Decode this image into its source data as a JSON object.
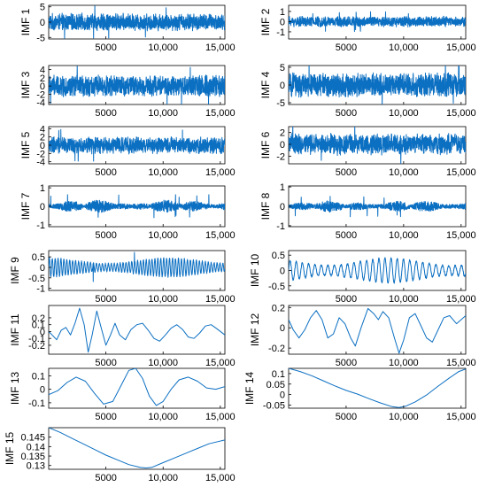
{
  "figure": {
    "line_color": "#0b6fc2"
  },
  "chart_data": [
    {
      "type": "line",
      "ylabel": "IMF 1",
      "xlim": [
        0,
        15400
      ],
      "xticks": [
        5000,
        10000,
        15000
      ],
      "xtick_labels": [
        "5000",
        "10,000",
        "15,000"
      ],
      "ylim": [
        -5.5,
        5.5
      ],
      "yticks": [
        -5,
        0,
        5
      ],
      "ytick_labels": [
        "-5",
        "0",
        "5"
      ],
      "signal": {
        "kind": "noise",
        "amp": 3.0,
        "spikes": 6
      }
    },
    {
      "type": "line",
      "ylabel": "IMF 2",
      "xlim": [
        0,
        15400
      ],
      "xticks": [
        5000,
        10000,
        15000
      ],
      "xtick_labels": [
        "5000",
        "10,000",
        "15,000"
      ],
      "ylim": [
        -1.7,
        1.6
      ],
      "yticks": [
        -1,
        0,
        1
      ],
      "ytick_labels": [
        "-1",
        "0",
        "1"
      ],
      "signal": {
        "kind": "noise",
        "amp": 0.55,
        "spikes": 10
      }
    },
    {
      "type": "line",
      "ylabel": "IMF 3",
      "xlim": [
        0,
        15400
      ],
      "xticks": [
        5000,
        10000,
        15000
      ],
      "xtick_labels": [
        "5000",
        "10,000",
        "15,000"
      ],
      "ylim": [
        -4.5,
        5.0
      ],
      "yticks": [
        -4,
        -2,
        0,
        2,
        4
      ],
      "ytick_labels": [
        "-4",
        "-2",
        "0",
        "2",
        "4"
      ],
      "signal": {
        "kind": "noise",
        "amp": 2.8,
        "spikes": 6
      }
    },
    {
      "type": "line",
      "ylabel": "IMF 4",
      "xlim": [
        0,
        15400
      ],
      "xticks": [
        5000,
        10000,
        15000
      ],
      "xtick_labels": [
        "5000",
        "10,000",
        "15,000"
      ],
      "ylim": [
        -5.5,
        5.5
      ],
      "yticks": [
        -5,
        0,
        5
      ],
      "ytick_labels": [
        "-5",
        "0",
        "5"
      ],
      "signal": {
        "kind": "noise",
        "amp": 3.6,
        "spikes": 6
      }
    },
    {
      "type": "line",
      "ylabel": "IMF 5",
      "xlim": [
        0,
        15400
      ],
      "xticks": [
        5000,
        10000,
        15000
      ],
      "xtick_labels": [
        "5000",
        "10,000",
        "15,000"
      ],
      "ylim": [
        -4.5,
        4.5
      ],
      "yticks": [
        -4,
        -2,
        0,
        2,
        4
      ],
      "ytick_labels": [
        "-4",
        "-2",
        "0",
        "2",
        "4"
      ],
      "signal": {
        "kind": "noise",
        "amp": 2.2,
        "spikes": 6
      }
    },
    {
      "type": "line",
      "ylabel": "IMF 6",
      "xlim": [
        0,
        15400
      ],
      "xticks": [
        5000,
        10000,
        15000
      ],
      "xtick_labels": [
        "5000",
        "10,000",
        "15,000"
      ],
      "ylim": [
        -3.3,
        3.0
      ],
      "yticks": [
        -2,
        0,
        2
      ],
      "ytick_labels": [
        "-2",
        "0",
        "2"
      ],
      "signal": {
        "kind": "noise",
        "amp": 1.9,
        "spikes": 4
      }
    },
    {
      "type": "line",
      "ylabel": "IMF 7",
      "xlim": [
        0,
        15400
      ],
      "xticks": [
        5000,
        10000,
        15000
      ],
      "xtick_labels": [
        "5000",
        "10,000",
        "15,000"
      ],
      "ylim": [
        -1.1,
        1.1
      ],
      "yticks": [
        -1,
        0,
        1
      ],
      "ytick_labels": [
        "-1",
        "0",
        "1"
      ],
      "signal": {
        "kind": "bursty",
        "amp": 0.35,
        "spikes": 12
      }
    },
    {
      "type": "line",
      "ylabel": "IMF 8",
      "xlim": [
        0,
        15400
      ],
      "xticks": [
        5000,
        10000,
        15000
      ],
      "xtick_labels": [
        "5000",
        "10,000",
        "15,000"
      ],
      "ylim": [
        -1.05,
        1.05
      ],
      "yticks": [
        -1,
        0,
        1
      ],
      "ytick_labels": [
        "-1",
        "0",
        "1"
      ],
      "signal": {
        "kind": "bursty",
        "amp": 0.3,
        "spikes": 10
      }
    },
    {
      "type": "line",
      "ylabel": "IMF 9",
      "xlim": [
        0,
        15400
      ],
      "xticks": [
        5000,
        10000,
        15000
      ],
      "xtick_labels": [
        "5000",
        "10,000",
        "15,000"
      ],
      "ylim": [
        -1.1,
        0.8
      ],
      "yticks": [
        -1,
        -0.5,
        0,
        0.5
      ],
      "ytick_labels": [
        "-1",
        "-0.5",
        "0",
        "0.5"
      ],
      "signal": {
        "kind": "osc",
        "amp": 0.45,
        "cycles": 60,
        "spikes": 2
      }
    },
    {
      "type": "line",
      "ylabel": "IMF 10",
      "xlim": [
        0,
        15400
      ],
      "xticks": [
        5000,
        10000,
        15000
      ],
      "xtick_labels": [
        "5000",
        "10,000",
        "15,000"
      ],
      "ylim": [
        -0.65,
        0.65
      ],
      "yticks": [
        -0.5,
        0,
        0.5
      ],
      "ytick_labels": [
        "-0.5",
        "0",
        "0.5"
      ],
      "signal": {
        "kind": "osc",
        "amp": 0.4,
        "cycles": 28,
        "spikes": 0
      }
    },
    {
      "type": "line",
      "ylabel": "IMF 11",
      "xlim": [
        0,
        15400
      ],
      "xticks": [
        5000,
        10000,
        15000
      ],
      "xtick_labels": [
        "5000",
        "10,000",
        "15,000"
      ],
      "ylim": [
        -0.33,
        0.38
      ],
      "yticks": [
        -0.2,
        -0.1,
        0,
        0.1,
        0.2
      ],
      "ytick_labels": [
        "-0.2",
        "-0.1",
        "0",
        "0.1",
        "0.2"
      ],
      "signal": {
        "kind": "custom",
        "points": [
          [
            0,
            0
          ],
          [
            300,
            -0.05
          ],
          [
            700,
            -0.12
          ],
          [
            1100,
            0.02
          ],
          [
            1500,
            0.06
          ],
          [
            1900,
            -0.05
          ],
          [
            2300,
            0.12
          ],
          [
            2700,
            0.34
          ],
          [
            3100,
            0.1
          ],
          [
            3450,
            -0.3
          ],
          [
            3800,
            -0.05
          ],
          [
            4200,
            0.3
          ],
          [
            4600,
            0.05
          ],
          [
            5000,
            -0.2
          ],
          [
            5400,
            -0.05
          ],
          [
            5800,
            0.12
          ],
          [
            6200,
            -0.05
          ],
          [
            6700,
            -0.12
          ],
          [
            7200,
            0.03
          ],
          [
            7700,
            0.1
          ],
          [
            8200,
            0.12
          ],
          [
            8700,
            0.02
          ],
          [
            9200,
            -0.1
          ],
          [
            9700,
            -0.14
          ],
          [
            10200,
            -0.05
          ],
          [
            10700,
            0.05
          ],
          [
            11200,
            0.1
          ],
          [
            11700,
            0.03
          ],
          [
            12200,
            -0.08
          ],
          [
            12700,
            -0.1
          ],
          [
            13200,
            -0.02
          ],
          [
            13700,
            0.08
          ],
          [
            14200,
            0.1
          ],
          [
            14700,
            0.04
          ],
          [
            15400,
            -0.05
          ]
        ]
      }
    },
    {
      "type": "line",
      "ylabel": "IMF 12",
      "xlim": [
        0,
        15400
      ],
      "xticks": [
        5000,
        10000,
        15000
      ],
      "xtick_labels": [
        "5000",
        "10,000",
        "15,000"
      ],
      "ylim": [
        -0.26,
        0.22
      ],
      "yticks": [
        -0.2,
        0,
        0.2
      ],
      "ytick_labels": [
        "-0.2",
        "0",
        "0.2"
      ],
      "signal": {
        "kind": "custom",
        "points": [
          [
            0,
            0.08
          ],
          [
            400,
            -0.02
          ],
          [
            900,
            -0.1
          ],
          [
            1400,
            -0.02
          ],
          [
            1900,
            0.1
          ],
          [
            2400,
            0.17
          ],
          [
            2900,
            0.08
          ],
          [
            3400,
            -0.1
          ],
          [
            3900,
            -0.06
          ],
          [
            4400,
            0.1
          ],
          [
            4900,
            0.04
          ],
          [
            5400,
            -0.1
          ],
          [
            5800,
            -0.18
          ],
          [
            6300,
            0.0
          ],
          [
            6900,
            0.19
          ],
          [
            7400,
            0.14
          ],
          [
            7800,
            0.08
          ],
          [
            8200,
            0.16
          ],
          [
            8700,
            0.1
          ],
          [
            9200,
            -0.1
          ],
          [
            9600,
            -0.25
          ],
          [
            10000,
            -0.12
          ],
          [
            10500,
            0.1
          ],
          [
            11000,
            0.14
          ],
          [
            11500,
            0.02
          ],
          [
            12000,
            -0.1
          ],
          [
            12500,
            -0.14
          ],
          [
            13000,
            -0.02
          ],
          [
            13500,
            0.1
          ],
          [
            14000,
            0.12
          ],
          [
            14600,
            0.04
          ],
          [
            15400,
            0.12
          ]
        ]
      }
    },
    {
      "type": "line",
      "ylabel": "IMF 13",
      "xlim": [
        0,
        15400
      ],
      "xticks": [
        5000,
        10000,
        15000
      ],
      "xtick_labels": [
        "5000",
        "10,000",
        "15,000"
      ],
      "ylim": [
        -0.14,
        0.155
      ],
      "yticks": [
        -0.1,
        0,
        0.1
      ],
      "ytick_labels": [
        "-0.1",
        "0",
        "0.1"
      ],
      "signal": {
        "kind": "custom",
        "points": [
          [
            0,
            -0.04
          ],
          [
            800,
            -0.01
          ],
          [
            1600,
            0.05
          ],
          [
            2400,
            0.09
          ],
          [
            3200,
            0.06
          ],
          [
            4000,
            -0.03
          ],
          [
            4800,
            -0.11
          ],
          [
            5600,
            -0.09
          ],
          [
            6400,
            0.04
          ],
          [
            7000,
            0.14
          ],
          [
            7600,
            0.155
          ],
          [
            8200,
            0.08
          ],
          [
            8800,
            -0.05
          ],
          [
            9400,
            -0.12
          ],
          [
            10000,
            -0.09
          ],
          [
            10700,
            0.0
          ],
          [
            11400,
            0.07
          ],
          [
            12200,
            0.09
          ],
          [
            13000,
            0.06
          ],
          [
            13800,
            0.01
          ],
          [
            14600,
            0.0
          ],
          [
            15400,
            0.02
          ]
        ]
      }
    },
    {
      "type": "line",
      "ylabel": "IMF 14",
      "xlim": [
        0,
        15400
      ],
      "xticks": [
        5000,
        10000,
        15000
      ],
      "xtick_labels": [
        "5000",
        "10,000",
        "15,000"
      ],
      "ylim": [
        -0.065,
        0.125
      ],
      "yticks": [
        -0.05,
        0,
        0.05,
        0.1
      ],
      "ytick_labels": [
        "-0.05",
        "0",
        "0.05",
        "0.1"
      ],
      "signal": {
        "kind": "custom",
        "points": [
          [
            0,
            0.125
          ],
          [
            1000,
            0.11
          ],
          [
            2000,
            0.09
          ],
          [
            3000,
            0.066
          ],
          [
            4000,
            0.042
          ],
          [
            5000,
            0.02
          ],
          [
            6000,
            0.002
          ],
          [
            7000,
            -0.02
          ],
          [
            8000,
            -0.04
          ],
          [
            9000,
            -0.058
          ],
          [
            9600,
            -0.062
          ],
          [
            10200,
            -0.055
          ],
          [
            11000,
            -0.035
          ],
          [
            12000,
            -0.002
          ],
          [
            13000,
            0.04
          ],
          [
            14000,
            0.08
          ],
          [
            14800,
            0.11
          ],
          [
            15400,
            0.122
          ]
        ]
      }
    },
    {
      "type": "line",
      "ylabel": "IMF 15",
      "xlim": [
        0,
        15400
      ],
      "xticks": [
        5000,
        10000,
        15000
      ],
      "xtick_labels": [
        "5000",
        "10,000",
        "15,000"
      ],
      "ylim": [
        0.128,
        0.15
      ],
      "yticks": [
        0.13,
        0.135,
        0.14,
        0.145
      ],
      "ytick_labels": [
        "0.13",
        "0.135",
        "0.14",
        "0.145"
      ],
      "signal": {
        "kind": "custom",
        "points": [
          [
            0,
            0.15
          ],
          [
            1000,
            0.1475
          ],
          [
            2000,
            0.1445
          ],
          [
            3000,
            0.1415
          ],
          [
            4000,
            0.1385
          ],
          [
            5000,
            0.1355
          ],
          [
            6000,
            0.133
          ],
          [
            7000,
            0.1305
          ],
          [
            8000,
            0.129
          ],
          [
            8500,
            0.1287
          ],
          [
            9000,
            0.129
          ],
          [
            10000,
            0.1315
          ],
          [
            11000,
            0.134
          ],
          [
            12000,
            0.1365
          ],
          [
            13000,
            0.139
          ],
          [
            14000,
            0.1415
          ],
          [
            15400,
            0.1435
          ]
        ]
      }
    }
  ]
}
